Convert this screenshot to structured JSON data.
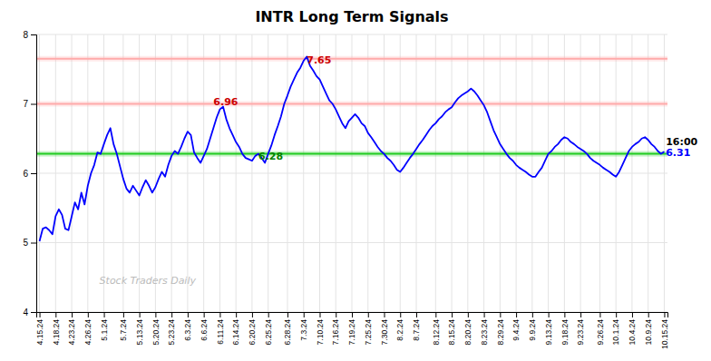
{
  "chart_data": {
    "type": "line",
    "title": "INTR Long Term Signals",
    "color": "blue",
    "grid": true,
    "ylim": [
      4,
      8
    ],
    "yticks": [
      4,
      5,
      6,
      7,
      8
    ],
    "categories": [
      "4.15.24",
      null,
      null,
      null,
      null,
      "4.18.24",
      null,
      null,
      null,
      null,
      "4.23.24",
      null,
      null,
      null,
      null,
      "4.26.24",
      null,
      null,
      null,
      null,
      "5.1.24",
      null,
      null,
      null,
      null,
      null,
      "5.7.24",
      null,
      null,
      null,
      null,
      "5.13.24",
      null,
      null,
      null,
      null,
      "5.20.24",
      null,
      null,
      null,
      null,
      "5.23.24",
      null,
      null,
      null,
      null,
      "6.3.24",
      null,
      null,
      null,
      null,
      "6.6.24",
      null,
      null,
      null,
      null,
      "6.11.24",
      null,
      null,
      null,
      null,
      "6.14.24",
      null,
      null,
      null,
      null,
      "6.20.24",
      null,
      null,
      null,
      null,
      "6.25.24",
      null,
      null,
      null,
      null,
      null,
      "6.28.24",
      null,
      null,
      null,
      null,
      "7.3.24",
      null,
      null,
      null,
      null,
      "7.10.24",
      null,
      null,
      null,
      null,
      "7.16.24",
      null,
      null,
      null,
      null,
      "7.19.24",
      null,
      null,
      null,
      null,
      "7.25.24",
      null,
      null,
      null,
      null,
      "7.30.24",
      null,
      null,
      null,
      null,
      "8.2.24",
      null,
      null,
      null,
      null,
      "8.7.24",
      null,
      null,
      null,
      null,
      null,
      "8.12.24",
      null,
      null,
      null,
      null,
      "8.15.24",
      null,
      null,
      null,
      null,
      "8.20.24",
      null,
      null,
      null,
      null,
      "8.23.24",
      null,
      null,
      null,
      null,
      "8.29.24",
      null,
      null,
      null,
      null,
      "9.4.24",
      null,
      null,
      null,
      null,
      "9.9.24",
      null,
      null,
      null,
      null,
      "9.13.24",
      null,
      null,
      null,
      null,
      "9.18.24",
      null,
      null,
      null,
      null,
      "9.23.24",
      null,
      null,
      null,
      null,
      null,
      "9.26.24",
      null,
      null,
      null,
      null,
      "10.1.24",
      null,
      null,
      null,
      null,
      "10.4.24",
      null,
      null,
      null,
      null,
      "10.9.24",
      null,
      null,
      null,
      null,
      "10.15.24"
    ],
    "values": [
      5.02,
      5.2,
      5.22,
      5.18,
      5.12,
      5.38,
      5.48,
      5.4,
      5.2,
      5.18,
      5.38,
      5.58,
      5.48,
      5.72,
      5.55,
      5.82,
      6.0,
      6.12,
      6.3,
      6.28,
      6.42,
      6.55,
      6.65,
      6.42,
      6.28,
      6.1,
      5.92,
      5.78,
      5.72,
      5.82,
      5.75,
      5.68,
      5.8,
      5.9,
      5.82,
      5.72,
      5.8,
      5.92,
      6.02,
      5.95,
      6.12,
      6.25,
      6.32,
      6.28,
      6.38,
      6.5,
      6.6,
      6.55,
      6.3,
      6.22,
      6.15,
      6.25,
      6.35,
      6.5,
      6.65,
      6.8,
      6.92,
      6.96,
      6.78,
      6.65,
      6.55,
      6.45,
      6.38,
      6.28,
      6.22,
      6.2,
      6.18,
      6.25,
      6.28,
      6.22,
      6.15,
      6.28,
      6.4,
      6.55,
      6.68,
      6.82,
      7.0,
      7.12,
      7.25,
      7.35,
      7.45,
      7.52,
      7.62,
      7.68,
      7.55,
      7.48,
      7.4,
      7.35,
      7.25,
      7.15,
      7.05,
      7.0,
      6.92,
      6.82,
      6.72,
      6.65,
      6.75,
      6.8,
      6.85,
      6.8,
      6.72,
      6.68,
      6.58,
      6.52,
      6.45,
      6.38,
      6.32,
      6.28,
      6.22,
      6.18,
      6.12,
      6.05,
      6.02,
      6.08,
      6.15,
      6.22,
      6.28,
      6.35,
      6.42,
      6.48,
      6.55,
      6.62,
      6.68,
      6.72,
      6.78,
      6.82,
      6.88,
      6.92,
      6.95,
      7.02,
      7.08,
      7.12,
      7.15,
      7.18,
      7.22,
      7.18,
      7.12,
      7.05,
      6.98,
      6.88,
      6.75,
      6.62,
      6.52,
      6.42,
      6.35,
      6.28,
      6.22,
      6.18,
      6.12,
      6.08,
      6.05,
      6.02,
      5.98,
      5.95,
      5.95,
      6.02,
      6.08,
      6.18,
      6.28,
      6.32,
      6.38,
      6.42,
      6.48,
      6.52,
      6.5,
      6.45,
      6.42,
      6.38,
      6.35,
      6.32,
      6.28,
      6.22,
      6.18,
      6.15,
      6.12,
      6.08,
      6.05,
      6.02,
      5.98,
      5.95,
      6.02,
      6.12,
      6.22,
      6.32,
      6.38,
      6.42,
      6.45,
      6.5,
      6.52,
      6.48,
      6.42,
      6.38,
      6.32,
      6.28,
      6.31
    ],
    "reference_lines": [
      {
        "value": 7.0,
        "color": "#ffaaaa"
      },
      {
        "value": 7.65,
        "color": "#ffaaaa"
      },
      {
        "value": 6.28,
        "color": "#22cc22"
      }
    ],
    "annotations": [
      {
        "text": "7.65",
        "color": "#cc0000",
        "x": 83,
        "y": 7.58
      },
      {
        "text": "6.96",
        "color": "#cc0000",
        "x": 54,
        "y": 6.98
      },
      {
        "text": "6.28",
        "color": "green",
        "x": 68,
        "y": 6.2
      },
      {
        "text": "16:00",
        "color": "black",
        "x": 194.5,
        "y": 6.41
      },
      {
        "text": "6.31",
        "color": "blue",
        "x": 194.5,
        "y": 6.25
      }
    ],
    "watermark": {
      "text": "Stock Traders Daily",
      "color": "#bbbbbb"
    }
  }
}
